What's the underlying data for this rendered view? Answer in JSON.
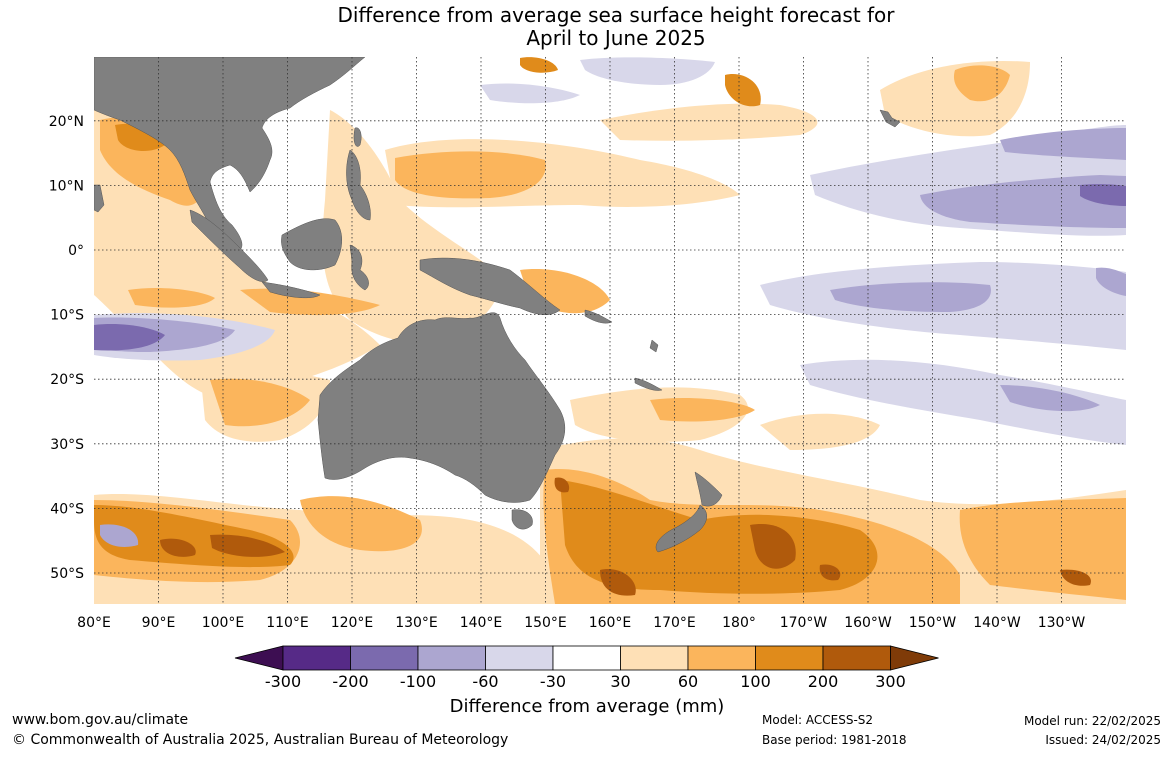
{
  "title": {
    "line1": "Difference from average sea surface height forecast for",
    "line2": "April to June 2025"
  },
  "map": {
    "lon_labels": [
      "80°E",
      "90°E",
      "100°E",
      "110°E",
      "120°E",
      "130°E",
      "140°E",
      "150°E",
      "160°E",
      "170°E",
      "180°",
      "170°W",
      "160°W",
      "150°W",
      "140°W",
      "130°W"
    ],
    "lat_labels": [
      "20°N",
      "10°N",
      "0°",
      "10°S",
      "20°S",
      "30°S",
      "40°S",
      "50°S"
    ],
    "land_color": "#808080",
    "grid": "dotted"
  },
  "colorbar": {
    "title": "Difference from average (mm)",
    "ticks": [
      "-300",
      "-200",
      "-100",
      "-60",
      "-30",
      "30",
      "60",
      "100",
      "200",
      "300"
    ],
    "colors": [
      "#3d0e52",
      "#562a87",
      "#7b6aae",
      "#aca6d0",
      "#d8d7ea",
      "#ffffff",
      "#fee0b6",
      "#fbb55c",
      "#e08b1b",
      "#b05a0c",
      "#7f3b08"
    ]
  },
  "footer": {
    "website": "www.bom.gov.au/climate",
    "copyright": "© Commonwealth of Australia 2025, Australian Bureau of Meteorology",
    "model": "Model: ACCESS-S2",
    "base_period": "Base period: 1981-2018",
    "model_run": "Model run: 22/02/2025",
    "issued": "Issued: 24/02/2025"
  }
}
